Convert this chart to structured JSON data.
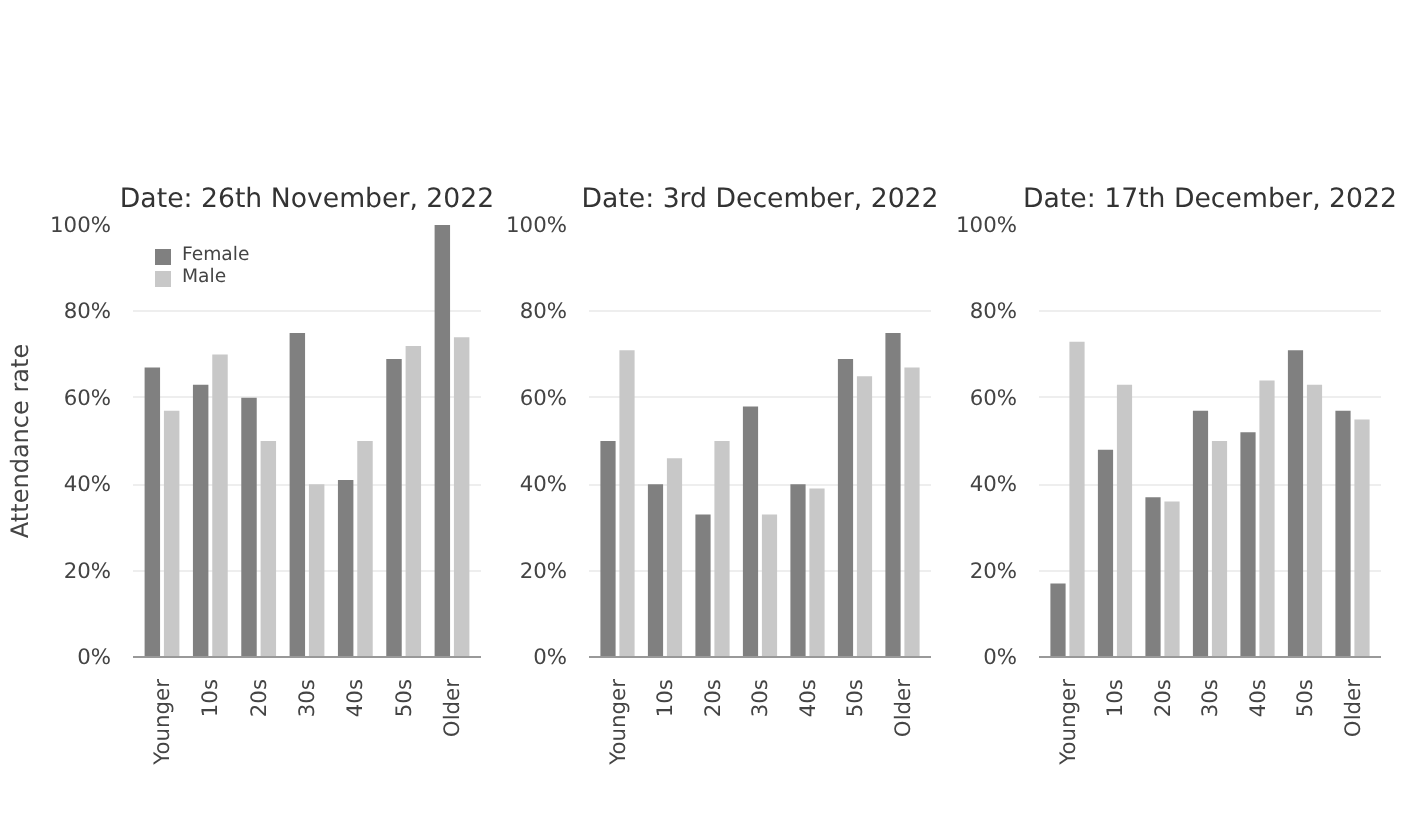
{
  "chart_data": [
    {
      "type": "bar",
      "title": "Date: 26th November, 2022",
      "ylabel": "Attendance rate",
      "categories": [
        "Younger",
        "10s",
        "20s",
        "30s",
        "40s",
        "50s",
        "Older"
      ],
      "series": [
        {
          "name": "Female",
          "color": "#808080",
          "values": [
            67,
            63,
            60,
            75,
            41,
            69,
            100
          ]
        },
        {
          "name": "Male",
          "color": "#c8c8c8",
          "values": [
            57,
            70,
            50,
            40,
            50,
            72,
            74
          ]
        }
      ],
      "ylim": [
        0,
        100
      ],
      "yticks": [
        {
          "value": 0,
          "label": "0%"
        },
        {
          "value": 20,
          "label": "20%"
        },
        {
          "value": 40,
          "label": "40%"
        },
        {
          "value": 60,
          "label": "60%"
        },
        {
          "value": 80,
          "label": "80%"
        },
        {
          "value": 100,
          "label": "100%"
        }
      ],
      "grid": "y",
      "legend": "top left"
    },
    {
      "type": "bar",
      "title": "Date: 3rd December, 2022",
      "categories": [
        "Younger",
        "10s",
        "20s",
        "30s",
        "40s",
        "50s",
        "Older"
      ],
      "series": [
        {
          "color": "#808080",
          "values": [
            50,
            40,
            33,
            58,
            40,
            69,
            75
          ]
        },
        {
          "color": "#c8c8c8",
          "values": [
            71,
            46,
            50,
            33,
            39,
            65,
            67
          ]
        }
      ],
      "ylim": [
        0,
        100
      ],
      "yticks": [
        {
          "value": 0,
          "label": "0%"
        },
        {
          "value": 20,
          "label": "20%"
        },
        {
          "value": 40,
          "label": "40%"
        },
        {
          "value": 60,
          "label": "60%"
        },
        {
          "value": 80,
          "label": "80%"
        },
        {
          "value": 100,
          "label": "100%"
        }
      ],
      "grid": "y"
    },
    {
      "type": "bar",
      "title": "Date: 17th December, 2022",
      "categories": [
        "Younger",
        "10s",
        "20s",
        "30s",
        "40s",
        "50s",
        "Older"
      ],
      "series": [
        {
          "color": "#808080",
          "values": [
            17,
            48,
            37,
            57,
            52,
            71,
            57
          ]
        },
        {
          "color": "#c8c8c8",
          "values": [
            73,
            63,
            36,
            50,
            64,
            63,
            55
          ]
        }
      ],
      "ylim": [
        0,
        100
      ],
      "yticks": [
        {
          "value": 0,
          "label": "0%"
        },
        {
          "value": 20,
          "label": "20%"
        },
        {
          "value": 40,
          "label": "40%"
        },
        {
          "value": 60,
          "label": "60%"
        },
        {
          "value": 80,
          "label": "80%"
        },
        {
          "value": 100,
          "label": "100%"
        }
      ],
      "grid": "y"
    }
  ]
}
